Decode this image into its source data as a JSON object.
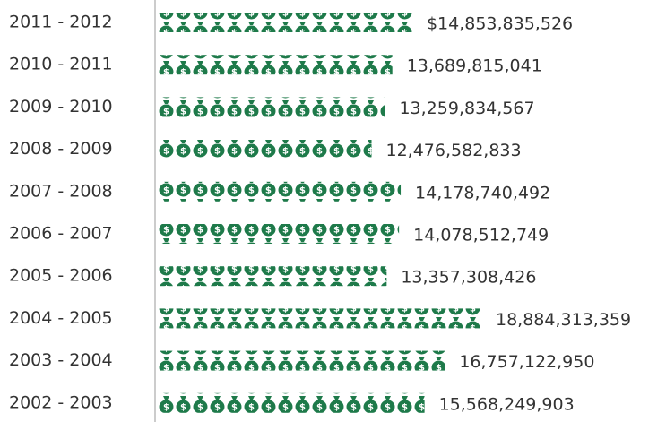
{
  "chart_data": {
    "type": "bar",
    "orientation": "horizontal",
    "color": "#1e7a4a",
    "categories": [
      "2011 - 2012",
      "2010 - 2011",
      "2009 - 2010",
      "2008 - 2009",
      "2007 - 2008",
      "2006 - 2007",
      "2005 - 2006",
      "2004 - 2005",
      "2003 - 2004",
      "2002 - 2003"
    ],
    "values": [
      14853835526,
      13689815041,
      13259834567,
      12476582833,
      14178740492,
      14078512749,
      13357308426,
      18884313359,
      16757122950,
      15568249903
    ],
    "value_labels": [
      "$14,853,835,526",
      "13,689,815,041",
      "13,259,834,567",
      "12,476,582,833",
      "14,178,740,492",
      "14,078,512,749",
      "13,357,308,426",
      "18,884,313,359",
      "16,757,122,950",
      "15,568,249,903"
    ]
  }
}
